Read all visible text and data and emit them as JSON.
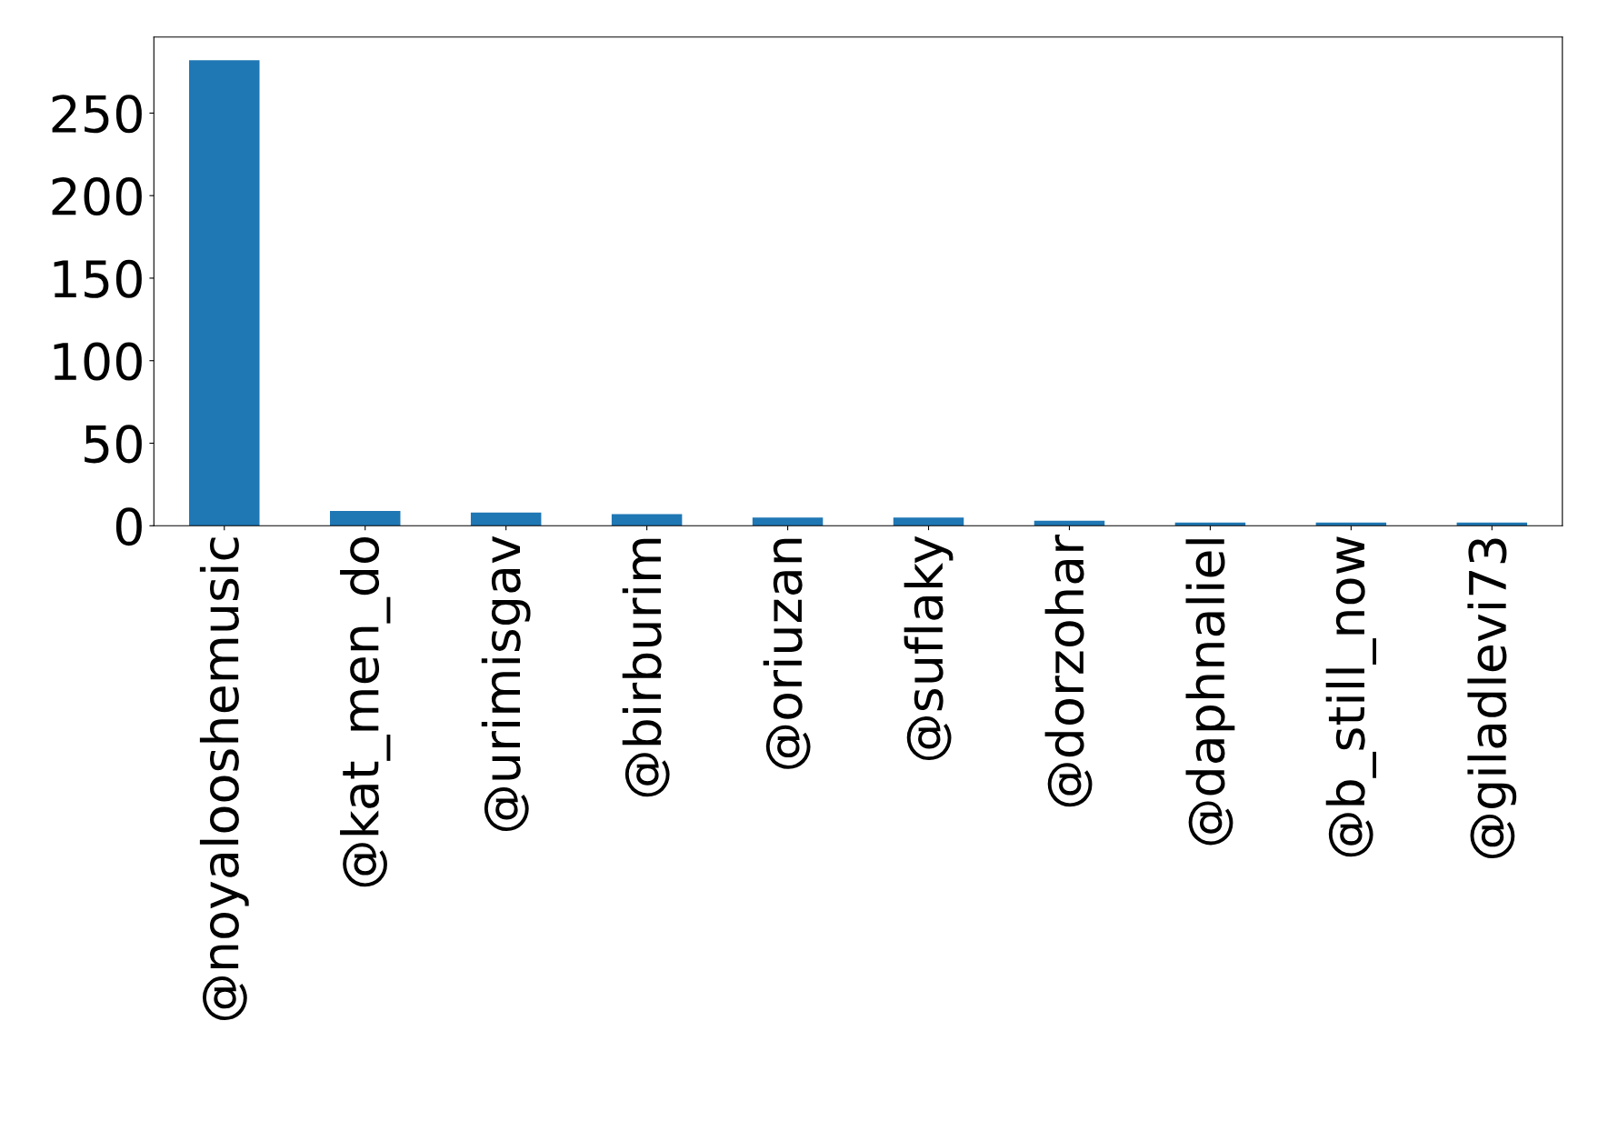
{
  "chart_data": {
    "type": "bar",
    "categories": [
      "@noyalooshemusic",
      "@kat_men_do",
      "@urimisgav",
      "@birburim",
      "@oriuzan",
      "@suflaky",
      "@dorzohar",
      "@daphnaliel",
      "@b_still_now",
      "@giladlevi73"
    ],
    "values": [
      282,
      9,
      8,
      7,
      5,
      5,
      3,
      2,
      2,
      2
    ],
    "color": "#1f77b4",
    "ylim": [
      0,
      296.1
    ],
    "yticks": [
      0,
      50,
      100,
      150,
      200,
      250
    ],
    "grid": false,
    "legend": false
  }
}
